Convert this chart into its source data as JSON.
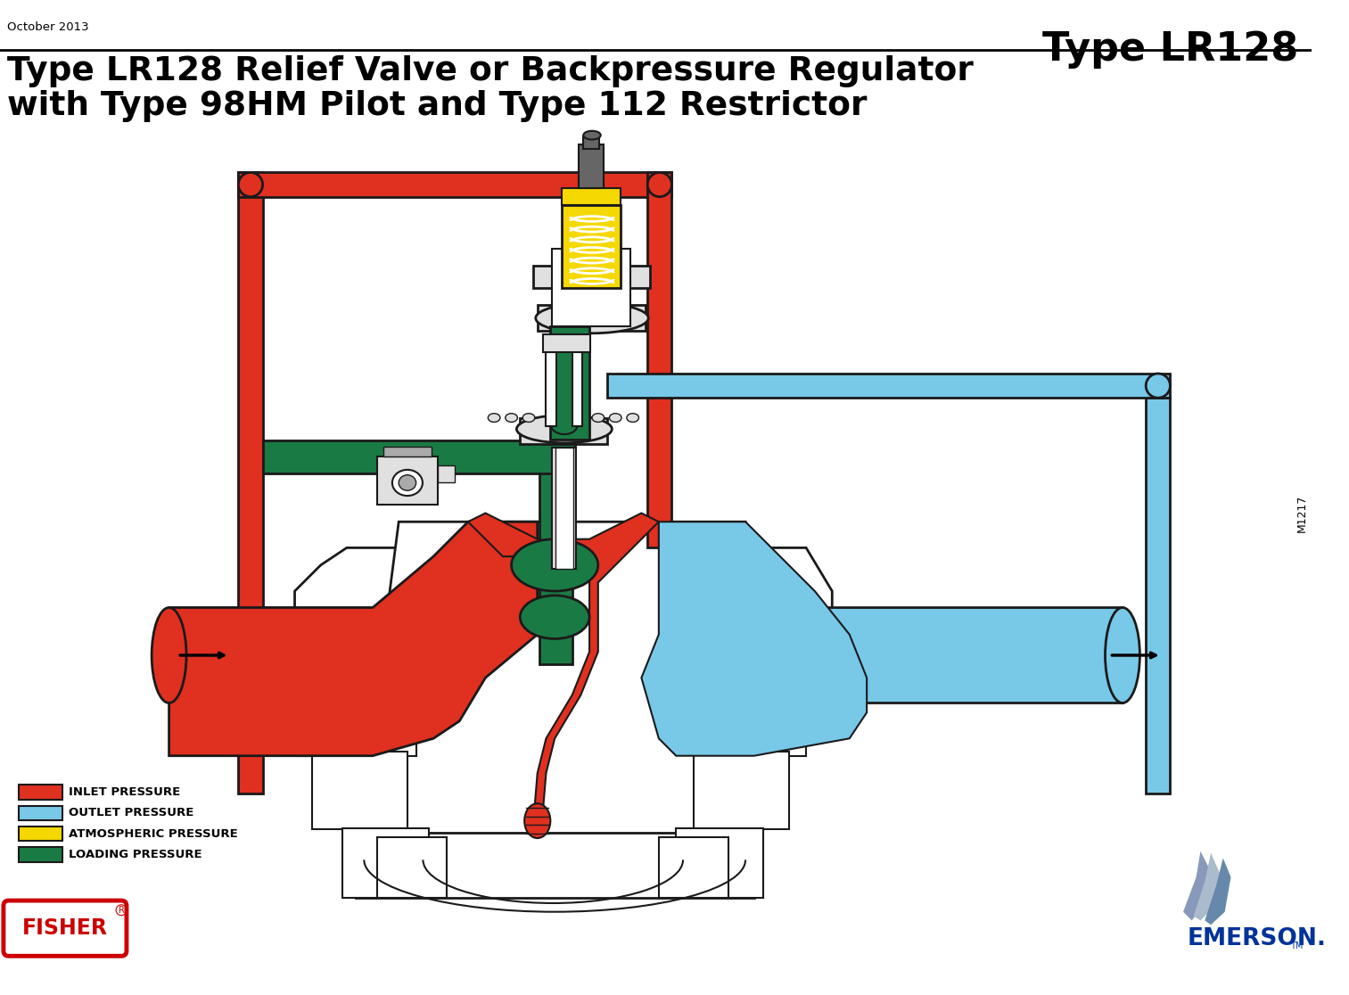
{
  "title_top_right": "Type LR128",
  "date_top_left": "October 2013",
  "main_title_line1": "Type LR128 Relief Valve or Backpressure Regulator",
  "main_title_line2": "with Type 98HM Pilot and Type 112 Restrictor",
  "legend_items": [
    {
      "color": "#E03020",
      "label": "INLET PRESSURE"
    },
    {
      "color": "#78C8E8",
      "label": "OUTLET PRESSURE"
    },
    {
      "color": "#F5D800",
      "label": "ATMOSPHERIC PRESSURE"
    },
    {
      "color": "#1A7A44",
      "label": "LOADING PRESSURE"
    }
  ],
  "watermark_text": "M1217",
  "fisher_text": "FISHER",
  "emerson_text": "EMERSON.",
  "bg_color": "#FFFFFF",
  "diagram_colors": {
    "red": "#E03020",
    "light_blue": "#78C8E8",
    "green": "#1A7A44",
    "yellow": "#F5D800",
    "outline": "#1A1A1A",
    "white": "#FFFFFF",
    "lgray": "#E0E0E0",
    "mgray": "#AAAAAA",
    "dgray": "#666666"
  }
}
